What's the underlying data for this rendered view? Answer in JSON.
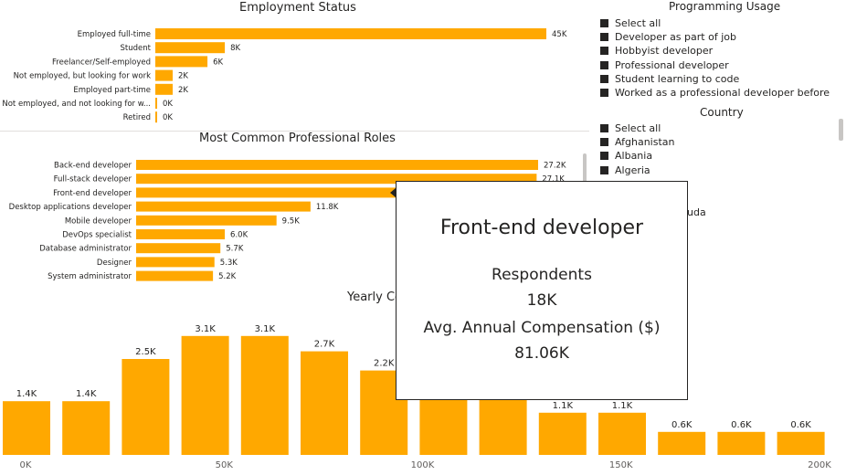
{
  "colors": {
    "bar": "#FFA800",
    "text": "#252423",
    "axis": "#605E5C"
  },
  "employment": {
    "title": "Employment Status",
    "chart_data": {
      "type": "bar",
      "orientation": "horizontal",
      "title": "Employment Status",
      "categories": [
        "Employed full-time",
        "Student",
        "Freelancer/Self-employed",
        "Not employed, but looking for work",
        "Employed part-time",
        "Not employed, and not looking for w...",
        "Retired"
      ],
      "values": [
        45000,
        8000,
        6000,
        2000,
        2000,
        0,
        0
      ],
      "value_labels": [
        "45K",
        "8K",
        "6K",
        "2K",
        "2K",
        "0K",
        "0K"
      ]
    }
  },
  "roles": {
    "title": "Most Common Professional Roles",
    "chart_data": {
      "type": "bar",
      "orientation": "horizontal",
      "title": "Most Common Professional Roles",
      "categories": [
        "Back-end developer",
        "Full-stack developer",
        "Front-end developer",
        "Desktop applications developer",
        "Mobile developer",
        "DevOps specialist",
        "Database administrator",
        "Designer",
        "System administrator"
      ],
      "values": [
        27200,
        27100,
        18000,
        11800,
        9500,
        6000,
        5700,
        5300,
        5200
      ],
      "value_labels": [
        "27.2K",
        "27.1K",
        "",
        "11.8K",
        "9.5K",
        "6.0K",
        "5.7K",
        "5.3K",
        "5.2K"
      ]
    }
  },
  "compensation": {
    "title": "Yearly Co",
    "chart_data": {
      "type": "bar",
      "title": "Yearly Co",
      "values": [
        1400,
        1400,
        2500,
        3100,
        3100,
        2700,
        2200,
        1700,
        1600,
        1100,
        1100,
        600,
        600,
        600
      ],
      "value_labels": [
        "1.4K",
        "1.4K",
        "2.5K",
        "3.1K",
        "3.1K",
        "2.7K",
        "2.2K",
        "",
        "",
        "1.1K",
        "1.1K",
        "0.6K",
        "0.6K",
        "0.6K"
      ],
      "x_ticks": [
        "0K",
        "50K",
        "100K",
        "150K",
        "200K"
      ],
      "ylim": [
        0,
        3500
      ]
    }
  },
  "programming_usage": {
    "title": "Programming Usage",
    "items": [
      "Select all",
      "Developer as part of job",
      "Hobbyist developer",
      "Professional developer",
      "Student learning to code",
      "Worked as a professional developer before"
    ]
  },
  "country": {
    "title": "Country",
    "items": [
      "Select all",
      "Afghanistan",
      "Albania",
      "Algeria"
    ],
    "partial_item": "uda"
  },
  "tooltip": {
    "title": "Front-end developer",
    "respondents_label": "Respondents",
    "respondents_value": "18K",
    "compensation_label": "Avg. Annual Compensation ($)",
    "compensation_value": "81.06K"
  }
}
